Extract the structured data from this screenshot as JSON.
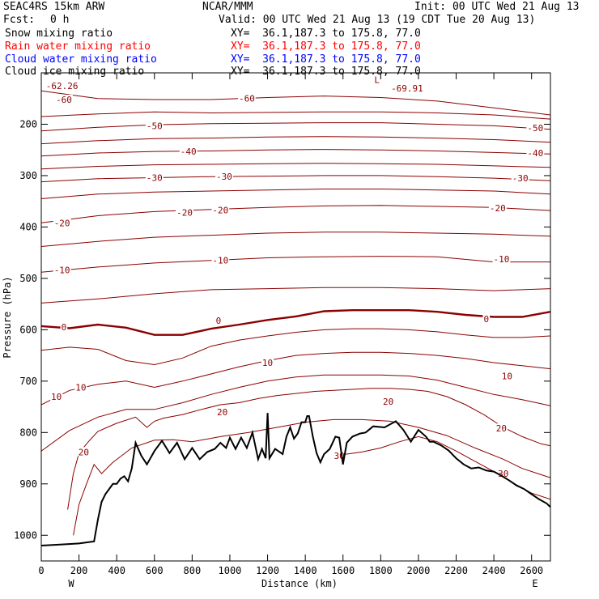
{
  "header": {
    "model": "SEAC4RS 15km ARW",
    "org": "NCAR/MMM",
    "init": "Init: 00 UTC Wed 21 Aug 13",
    "fcst_label": "Fcst:",
    "fcst_value": "0 h",
    "valid": "Valid: 00 UTC Wed 21 Aug 13 (19 CDT Tue 20 Aug 13)"
  },
  "fields": [
    {
      "name": "Snow mixing ratio",
      "xy": "XY=  36.1,187.3 to 175.8, 77.0",
      "color": "#000000"
    },
    {
      "name": "Rain water mixing ratio",
      "xy": "XY=  36.1,187.3 to 175.8, 77.0",
      "color": "#ff0000"
    },
    {
      "name": "Cloud water mixing ratio",
      "xy": "XY=  36.1,187.3 to 175.8, 77.0",
      "color": "#0000ff"
    },
    {
      "name": "Cloud ice mixing ratio",
      "xy": "XY=  36.1,187.3 to 175.8, 77.0",
      "color": "#000000"
    }
  ],
  "chart_data": {
    "type": "line",
    "xlabel": "Distance (km)",
    "ylabel": "Pressure (hPa)",
    "xlim": [
      0,
      2700
    ],
    "ylim": [
      100,
      1050
    ],
    "y_inverted": true,
    "x_ticks": [
      0,
      200,
      400,
      600,
      800,
      1000,
      1200,
      1400,
      1600,
      1800,
      2000,
      2200,
      2400,
      2600
    ],
    "y_ticks": [
      200,
      300,
      400,
      500,
      600,
      700,
      800,
      900,
      1000
    ],
    "x_end_labels": [
      "W",
      "E"
    ],
    "colors": {
      "isotherm": "#8b0000",
      "terrain": "#000000"
    },
    "extremes": [
      {
        "label": "-62.26",
        "x": 110,
        "y": 125
      },
      {
        "label": "L",
        "x": 1780,
        "y": 113
      },
      {
        "label": "-69.91",
        "x": 1940,
        "y": 130
      }
    ],
    "isotherms": [
      {
        "level": -60,
        "x": [
          0,
          300,
          600,
          900,
          1200,
          1500,
          1800,
          2100,
          2400,
          2700
        ],
        "y": [
          135,
          150,
          152,
          152,
          148,
          145,
          148,
          155,
          168,
          182
        ],
        "labels": [
          {
            "text": "-60",
            "x": 120,
            "y": 152
          },
          {
            "text": "-60",
            "x": 1090,
            "y": 150
          }
        ]
      },
      {
        "level": -55,
        "x": [
          0,
          300,
          600,
          900,
          1200,
          1500,
          1800,
          2100,
          2400,
          2700
        ],
        "y": [
          185,
          180,
          176,
          178,
          177,
          176,
          176,
          178,
          182,
          190
        ]
      },
      {
        "level": -50,
        "x": [
          0,
          300,
          600,
          900,
          1200,
          1500,
          1800,
          2100,
          2400,
          2700
        ],
        "y": [
          213,
          206,
          201,
          199,
          198,
          197,
          197,
          200,
          203,
          210
        ],
        "labels": [
          {
            "text": "-50",
            "x": 600,
            "y": 203
          },
          {
            "text": "-50",
            "x": 2620,
            "y": 207
          }
        ]
      },
      {
        "level": -45,
        "x": [
          0,
          300,
          600,
          900,
          1200,
          1500,
          1800,
          2100,
          2400,
          2700
        ],
        "y": [
          238,
          232,
          228,
          227,
          225,
          224,
          225,
          227,
          230,
          235
        ]
      },
      {
        "level": -40,
        "x": [
          0,
          300,
          600,
          900,
          1200,
          1500,
          1800,
          2100,
          2400,
          2700
        ],
        "y": [
          262,
          256,
          253,
          252,
          250,
          249,
          250,
          252,
          255,
          258
        ],
        "labels": [
          {
            "text": "-40",
            "x": 780,
            "y": 253
          },
          {
            "text": "-40",
            "x": 2620,
            "y": 256
          }
        ]
      },
      {
        "level": -35,
        "x": [
          0,
          300,
          600,
          900,
          1200,
          1500,
          1800,
          2100,
          2400,
          2700
        ],
        "y": [
          287,
          282,
          279,
          278,
          277,
          276,
          277,
          278,
          281,
          284
        ]
      },
      {
        "level": -30,
        "x": [
          0,
          300,
          600,
          900,
          1200,
          1500,
          1800,
          2100,
          2400,
          2700
        ],
        "y": [
          312,
          306,
          304,
          302,
          301,
          300,
          300,
          302,
          305,
          310
        ],
        "labels": [
          {
            "text": "-30",
            "x": 600,
            "y": 304
          },
          {
            "text": "-30",
            "x": 970,
            "y": 302
          },
          {
            "text": "-30",
            "x": 2540,
            "y": 305
          }
        ]
      },
      {
        "level": -25,
        "x": [
          0,
          300,
          600,
          900,
          1200,
          1500,
          1800,
          2100,
          2400,
          2700
        ],
        "y": [
          345,
          336,
          332,
          330,
          328,
          326,
          326,
          328,
          330,
          336
        ]
      },
      {
        "level": -20,
        "x": [
          0,
          300,
          600,
          900,
          1200,
          1500,
          1800,
          2100,
          2400,
          2700
        ],
        "y": [
          392,
          378,
          370,
          366,
          362,
          359,
          358,
          360,
          362,
          368
        ],
        "labels": [
          {
            "text": "-20",
            "x": 110,
            "y": 392
          },
          {
            "text": "-20",
            "x": 760,
            "y": 372
          },
          {
            "text": "-20",
            "x": 950,
            "y": 367
          },
          {
            "text": "-20",
            "x": 2420,
            "y": 363
          }
        ]
      },
      {
        "level": -15,
        "x": [
          0,
          300,
          600,
          900,
          1200,
          1500,
          1800,
          2100,
          2400,
          2700
        ],
        "y": [
          438,
          428,
          420,
          416,
          412,
          410,
          410,
          412,
          414,
          418
        ]
      },
      {
        "level": -10,
        "x": [
          0,
          300,
          600,
          900,
          1200,
          1500,
          1800,
          2100,
          2400,
          2700
        ],
        "y": [
          488,
          478,
          470,
          465,
          460,
          458,
          457,
          458,
          468,
          468
        ],
        "labels": [
          {
            "text": "-10",
            "x": 110,
            "y": 484
          },
          {
            "text": "-10",
            "x": 950,
            "y": 465
          },
          {
            "text": "-10",
            "x": 2440,
            "y": 462
          }
        ]
      },
      {
        "level": -5,
        "x": [
          0,
          300,
          600,
          900,
          1200,
          1500,
          1800,
          2100,
          2400,
          2700
        ],
        "y": [
          548,
          540,
          530,
          522,
          520,
          518,
          518,
          520,
          524,
          520
        ]
      },
      {
        "level": 0,
        "bold": true,
        "x": [
          0,
          150,
          300,
          450,
          600,
          750,
          900,
          1050,
          1200,
          1350,
          1500,
          1650,
          1800,
          1950,
          2100,
          2250,
          2400,
          2550,
          2700
        ],
        "y": [
          593,
          597,
          590,
          596,
          610,
          610,
          598,
          590,
          581,
          574,
          564,
          562,
          562,
          562,
          565,
          571,
          575,
          575,
          565
        ],
        "labels": [
          {
            "text": "0",
            "x": 120,
            "y": 595
          },
          {
            "text": "0",
            "x": 940,
            "y": 582
          },
          {
            "text": "0",
            "x": 2360,
            "y": 579
          }
        ]
      },
      {
        "level": 5,
        "x": [
          0,
          150,
          300,
          450,
          600,
          750,
          900,
          1050,
          1200,
          1350,
          1500,
          1650,
          1800,
          1950,
          2100,
          2250,
          2400,
          2550,
          2700
        ],
        "y": [
          640,
          634,
          638,
          660,
          668,
          655,
          632,
          620,
          612,
          605,
          600,
          598,
          598,
          600,
          604,
          610,
          615,
          615,
          612
        ]
      },
      {
        "level": 10,
        "x": [
          0,
          150,
          300,
          450,
          600,
          750,
          900,
          1050,
          1200,
          1350,
          1500,
          1650,
          1800,
          1950,
          2100,
          2250,
          2400,
          2550,
          2700
        ],
        "y": [
          746,
          718,
          706,
          700,
          712,
          700,
          686,
          672,
          660,
          650,
          646,
          644,
          644,
          646,
          650,
          656,
          664,
          670,
          676
        ],
        "labels": [
          {
            "text": "10",
            "x": 80,
            "y": 730
          },
          {
            "text": "10",
            "x": 210,
            "y": 712
          },
          {
            "text": "10",
            "x": 1200,
            "y": 664
          },
          {
            "text": "10",
            "x": 2470,
            "y": 690
          }
        ]
      },
      {
        "level": 15,
        "x": [
          0,
          150,
          300,
          450,
          600,
          750,
          900,
          1050,
          1200,
          1350,
          1500,
          1650,
          1800,
          1950,
          2100,
          2250,
          2400,
          2550,
          2700
        ],
        "y": [
          836,
          796,
          770,
          755,
          755,
          742,
          726,
          712,
          700,
          692,
          688,
          688,
          688,
          690,
          698,
          712,
          726,
          736,
          748
        ]
      },
      {
        "level": 20,
        "x": [
          140,
          170,
          200,
          250,
          300,
          400,
          500,
          560,
          600,
          650,
          750,
          850,
          950,
          1050,
          1150,
          1250,
          1350,
          1450,
          1550,
          1650,
          1750,
          1850,
          1950,
          2050,
          2150,
          2250,
          2350,
          2450,
          2550,
          2650,
          2700
        ],
        "y": [
          950,
          880,
          840,
          818,
          798,
          782,
          770,
          790,
          778,
          772,
          765,
          755,
          746,
          742,
          734,
          728,
          724,
          720,
          718,
          716,
          714,
          714,
          716,
          720,
          730,
          746,
          766,
          790,
          808,
          822,
          826
        ],
        "labels": [
          {
            "text": "20",
            "x": 225,
            "y": 838
          },
          {
            "text": "20",
            "x": 960,
            "y": 760
          },
          {
            "text": "20",
            "x": 1840,
            "y": 740
          },
          {
            "text": "20",
            "x": 2440,
            "y": 792
          }
        ]
      },
      {
        "level": 25,
        "x": [
          170,
          200,
          240,
          280,
          320,
          380,
          480,
          600,
          700,
          800,
          950,
          1100,
          1250,
          1400,
          1550,
          1700,
          1850,
          2000,
          2150,
          2300,
          2450,
          2550,
          2650,
          2700
        ],
        "y": [
          1000,
          940,
          900,
          862,
          880,
          858,
          830,
          815,
          814,
          818,
          808,
          800,
          790,
          780,
          775,
          775,
          778,
          790,
          806,
          830,
          852,
          870,
          882,
          888
        ]
      },
      {
        "level": 30,
        "x": [
          1550,
          1580,
          1620,
          1700,
          1800,
          1900,
          2000,
          2100,
          2200,
          2300,
          2400,
          2500,
          2600,
          2700
        ],
        "y": [
          850,
          842,
          842,
          838,
          830,
          818,
          808,
          818,
          836,
          856,
          876,
          898,
          918,
          930
        ],
        "labels": [
          {
            "text": "30",
            "x": 1580,
            "y": 845
          },
          {
            "text": "30",
            "x": 2450,
            "y": 880
          }
        ]
      }
    ],
    "terrain": {
      "x": [
        0,
        100,
        200,
        280,
        300,
        320,
        340,
        380,
        400,
        420,
        440,
        460,
        480,
        500,
        530,
        560,
        600,
        640,
        680,
        720,
        760,
        800,
        840,
        880,
        920,
        950,
        980,
        1000,
        1030,
        1060,
        1090,
        1120,
        1150,
        1170,
        1190,
        1200,
        1210,
        1240,
        1280,
        1300,
        1320,
        1340,
        1360,
        1380,
        1400,
        1410,
        1420,
        1440,
        1460,
        1480,
        1500,
        1530,
        1560,
        1580,
        1600,
        1620,
        1650,
        1690,
        1720,
        1760,
        1820,
        1880,
        1920,
        1960,
        2000,
        2040,
        2060,
        2080,
        2120,
        2160,
        2200,
        2240,
        2280,
        2320,
        2360,
        2400,
        2440,
        2480,
        2520,
        2560,
        2600,
        2640,
        2680,
        2700
      ],
      "y": [
        1020,
        1018,
        1016,
        1012,
        970,
        935,
        920,
        900,
        900,
        890,
        885,
        895,
        870,
        820,
        845,
        862,
        836,
        816,
        840,
        820,
        852,
        830,
        852,
        838,
        832,
        820,
        830,
        810,
        832,
        810,
        830,
        800,
        852,
        832,
        850,
        762,
        850,
        832,
        842,
        808,
        790,
        812,
        802,
        780,
        780,
        768,
        768,
        808,
        840,
        858,
        842,
        832,
        808,
        810,
        862,
        820,
        808,
        802,
        800,
        788,
        790,
        778,
        795,
        818,
        795,
        808,
        818,
        818,
        825,
        835,
        850,
        862,
        870,
        868,
        874,
        876,
        884,
        893,
        903,
        910,
        920,
        930,
        938,
        945
      ]
    }
  }
}
